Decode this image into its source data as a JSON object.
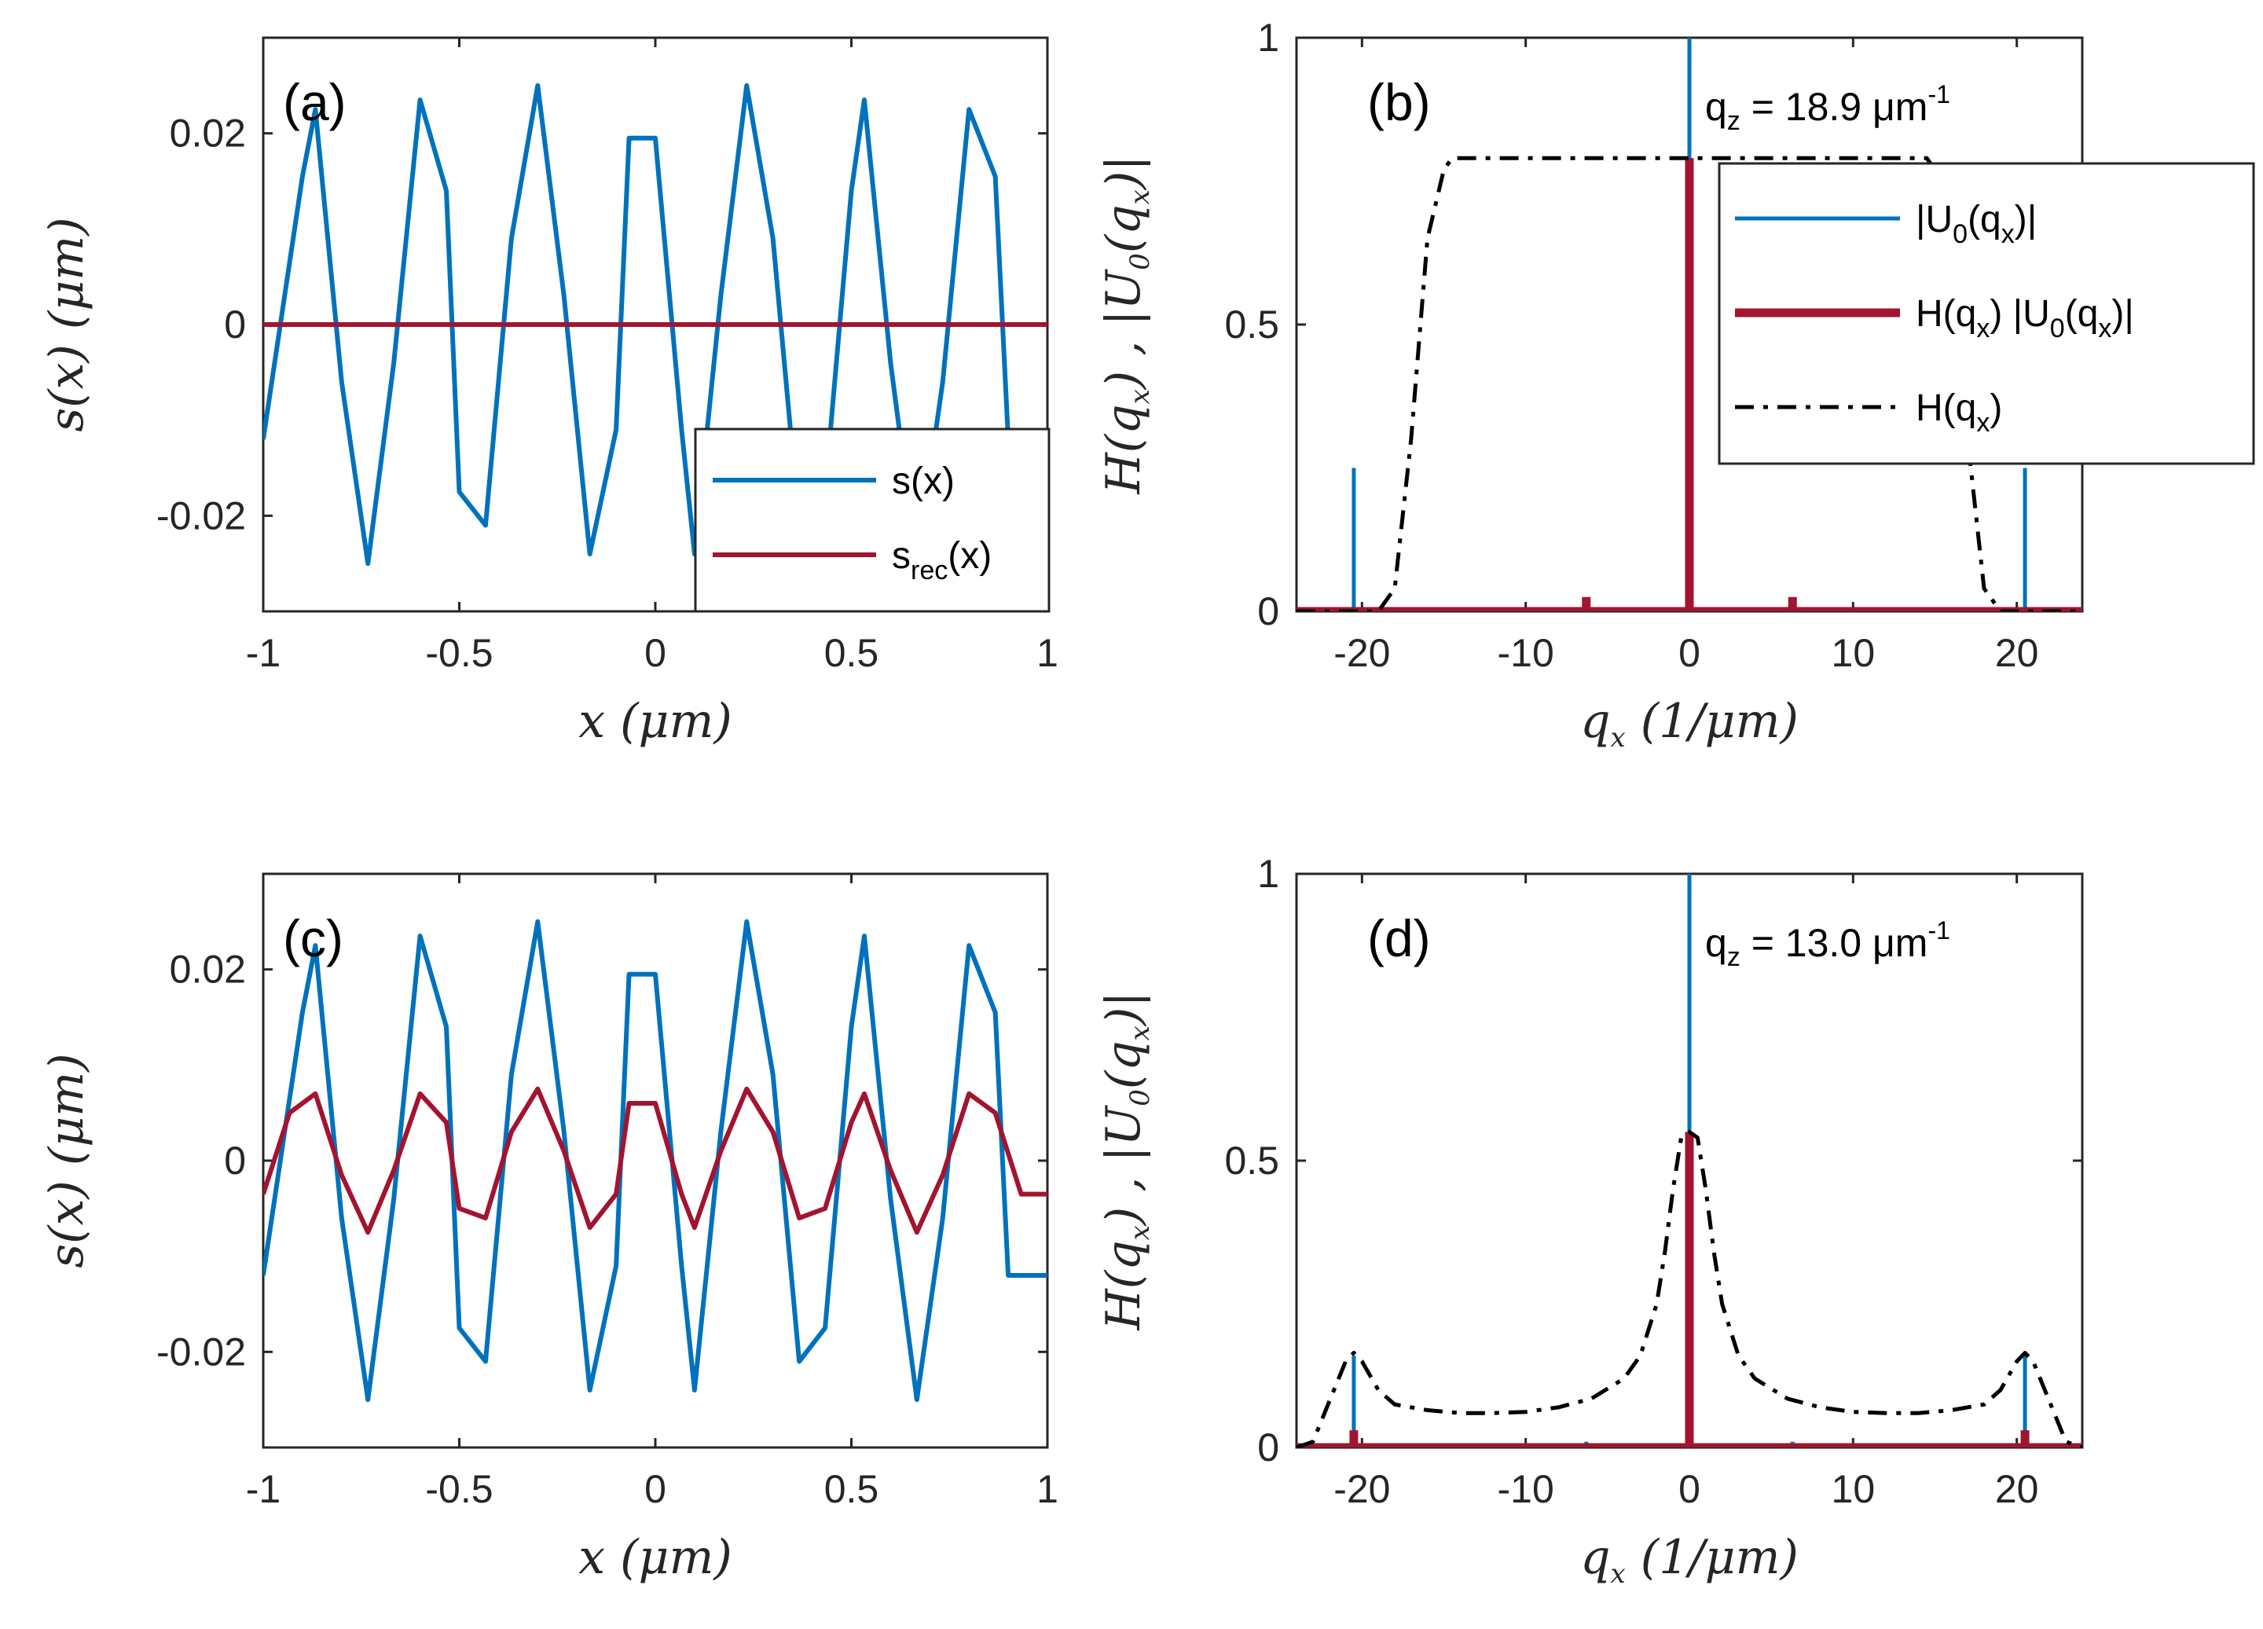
{
  "chart_data": [
    {
      "type": "line",
      "panel_label": "(a)",
      "xlabel": "x (μm)",
      "ylabel": "s(x) (μm)",
      "xlim": [
        -1,
        1
      ],
      "ylim": [
        -0.03,
        0.03
      ],
      "xticks": [
        "-1",
        "-0.5",
        "0",
        "0.5",
        "1"
      ],
      "yticks": [
        "-0.02",
        "0",
        "0.02"
      ],
      "legend": {
        "position": "bottom-right",
        "entries": [
          {
            "label": "s(x)",
            "sub": "",
            "tail": "",
            "color": "#0072BD"
          },
          {
            "label": "s",
            "sub": "rec",
            "tail": "(x)",
            "color": "#A2142F"
          }
        ]
      },
      "series": [
        {
          "name": "s(x)",
          "color": "#0072BD",
          "x": [
            -1,
            -0.9,
            -0.867,
            -0.8,
            -0.733,
            -0.667,
            -0.6,
            -0.533,
            -0.5,
            -0.433,
            -0.367,
            -0.3,
            -0.233,
            -0.167,
            -0.1,
            -0.067,
            0,
            0.067,
            0.1,
            0.167,
            0.233,
            0.3,
            0.367,
            0.433,
            0.5,
            0.533,
            0.6,
            0.667,
            0.733,
            0.8,
            0.867,
            0.9,
            1
          ],
          "y": [
            -0.012,
            0.0155,
            0.0225,
            -0.006,
            -0.025,
            -0.004,
            0.0235,
            0.014,
            -0.0175,
            -0.021,
            0.009,
            0.025,
            0.003,
            -0.024,
            -0.011,
            0.0195,
            0.0195,
            -0.011,
            -0.024,
            0.003,
            0.025,
            0.009,
            -0.021,
            -0.0175,
            0.014,
            0.0235,
            -0.004,
            -0.025,
            -0.006,
            0.0225,
            0.0155,
            -0.012,
            -0.012
          ]
        },
        {
          "name": "s_rec(x)",
          "color": "#A2142F",
          "x": [
            -1,
            1
          ],
          "y": [
            0,
            0
          ]
        }
      ]
    },
    {
      "type": "line",
      "panel_label": "(b)",
      "annotation": {
        "text": "q",
        "sub": "z",
        "mid": " = 18.9 μm",
        "sup": "-1"
      },
      "xlabel": "q_x (1/μm)",
      "ylabel": "H(q_x) , |U_0(q_x)|",
      "xlim": [
        -24,
        24
      ],
      "ylim": [
        0,
        1
      ],
      "xticks": [
        "-20",
        "-10",
        "0",
        "10",
        "20"
      ],
      "yticks": [
        "0",
        "0.5",
        "1"
      ],
      "legend": {
        "position": "top-right",
        "entries": [
          {
            "label": "|U_0(q_x)|",
            "color": "#0072BD"
          },
          {
            "label": "H(q_x) |U_0(q_x)|",
            "color": "#A2142F"
          },
          {
            "label": "H(q_x)",
            "color": "#000000"
          }
        ]
      },
      "series": [
        {
          "name": "|U_0(q_x)|",
          "color": "#0072BD",
          "kind": "stem",
          "x": [
            -20.5,
            -6.3,
            0,
            6.3,
            20.5
          ],
          "y": [
            0.25,
            0.02,
            1.0,
            0.02,
            0.25
          ]
        },
        {
          "name": "H(q_x) |U_0(q_x)|",
          "color": "#A2142F",
          "kind": "stem",
          "x": [
            -6.3,
            0,
            6.3
          ],
          "y": [
            0.025,
            0.79,
            0.025
          ]
        },
        {
          "name": "H(q_x)",
          "color": "#000000",
          "kind": "dashdot",
          "x": [
            -24,
            -19,
            -18,
            -17,
            -16,
            -15,
            -14.5,
            -14,
            0,
            14,
            14.5,
            15,
            16,
            17,
            18,
            19,
            24
          ],
          "y": [
            0,
            0,
            0.04,
            0.3,
            0.65,
            0.77,
            0.79,
            0.79,
            0.79,
            0.79,
            0.79,
            0.77,
            0.65,
            0.3,
            0.04,
            0,
            0
          ]
        }
      ]
    },
    {
      "type": "line",
      "panel_label": "(c)",
      "xlabel": "x (μm)",
      "ylabel": "s(x) (μm)",
      "xlim": [
        -1,
        1
      ],
      "ylim": [
        -0.03,
        0.03
      ],
      "xticks": [
        "-1",
        "-0.5",
        "0",
        "0.5",
        "1"
      ],
      "yticks": [
        "-0.02",
        "0",
        "0.02"
      ],
      "series": [
        {
          "name": "s(x)",
          "color": "#0072BD",
          "x": [
            -1,
            -0.9,
            -0.867,
            -0.8,
            -0.733,
            -0.667,
            -0.6,
            -0.533,
            -0.5,
            -0.433,
            -0.367,
            -0.3,
            -0.233,
            -0.167,
            -0.1,
            -0.067,
            0,
            0.067,
            0.1,
            0.167,
            0.233,
            0.3,
            0.367,
            0.433,
            0.5,
            0.533,
            0.6,
            0.667,
            0.733,
            0.8,
            0.867,
            0.9,
            1
          ],
          "y": [
            -0.012,
            0.0155,
            0.0225,
            -0.006,
            -0.025,
            -0.004,
            0.0235,
            0.014,
            -0.0175,
            -0.021,
            0.009,
            0.025,
            0.003,
            -0.024,
            -0.011,
            0.0195,
            0.0195,
            -0.011,
            -0.024,
            0.003,
            0.025,
            0.009,
            -0.021,
            -0.0175,
            0.014,
            0.0235,
            -0.004,
            -0.025,
            -0.006,
            0.0225,
            0.0155,
            -0.012,
            -0.012
          ]
        },
        {
          "name": "s_rec(x)",
          "color": "#A2142F",
          "x": [
            -1,
            -0.933,
            -0.867,
            -0.8,
            -0.733,
            -0.667,
            -0.6,
            -0.533,
            -0.5,
            -0.433,
            -0.367,
            -0.3,
            -0.233,
            -0.167,
            -0.1,
            -0.067,
            0,
            0.067,
            0.1,
            0.167,
            0.233,
            0.3,
            0.367,
            0.433,
            0.5,
            0.533,
            0.6,
            0.667,
            0.733,
            0.8,
            0.867,
            0.933,
            1
          ],
          "y": [
            -0.0035,
            0.005,
            0.007,
            -0.0015,
            -0.0075,
            -0.001,
            0.007,
            0.004,
            -0.005,
            -0.006,
            0.003,
            0.0075,
            0.001,
            -0.007,
            -0.0035,
            0.006,
            0.006,
            -0.0035,
            -0.007,
            0.001,
            0.0075,
            0.003,
            -0.006,
            -0.005,
            0.004,
            0.007,
            -0.001,
            -0.0075,
            -0.0015,
            0.007,
            0.005,
            -0.0035,
            -0.0035
          ]
        }
      ]
    },
    {
      "type": "line",
      "panel_label": "(d)",
      "annotation": {
        "text": "q",
        "sub": "z",
        "mid": " = 13.0 μm",
        "sup": "-1"
      },
      "xlabel": "q_x (1/μm)",
      "ylabel": "H(q_x) , |U_0(q_x)|",
      "xlim": [
        -24,
        24
      ],
      "ylim": [
        0,
        1
      ],
      "xticks": [
        "-20",
        "-10",
        "0",
        "10",
        "20"
      ],
      "yticks": [
        "0",
        "0.5",
        "1"
      ],
      "series": [
        {
          "name": "|U_0(q_x)|",
          "color": "#0072BD",
          "kind": "stem",
          "x": [
            -20.5,
            -6.3,
            0,
            6.3,
            20.5
          ],
          "y": [
            0.16,
            0.01,
            1.0,
            0.01,
            0.16
          ]
        },
        {
          "name": "H(q_x) |U_0(q_x)|",
          "color": "#A2142F",
          "kind": "stem",
          "x": [
            -20.5,
            0,
            20.5
          ],
          "y": [
            0.03,
            0.55,
            0.03
          ]
        },
        {
          "name": "H(q_x)",
          "color": "#000000",
          "kind": "dashdot",
          "x": [
            -24,
            -23,
            -22,
            -21,
            -20.5,
            -20,
            -19,
            -18,
            -16,
            -14,
            -12,
            -10,
            -8,
            -6,
            -4,
            -3,
            -2,
            -1.5,
            -1,
            -0.5,
            0,
            0.5,
            1,
            1.5,
            2,
            3,
            4,
            6,
            8,
            10,
            12,
            14,
            16,
            18,
            19,
            20,
            20.5,
            21,
            22,
            23,
            24
          ],
          "y": [
            0,
            0.01,
            0.08,
            0.15,
            0.165,
            0.15,
            0.1,
            0.075,
            0.065,
            0.06,
            0.06,
            0.062,
            0.07,
            0.085,
            0.12,
            0.16,
            0.25,
            0.34,
            0.45,
            0.54,
            0.55,
            0.54,
            0.45,
            0.34,
            0.25,
            0.16,
            0.12,
            0.085,
            0.07,
            0.062,
            0.06,
            0.06,
            0.065,
            0.075,
            0.1,
            0.15,
            0.165,
            0.15,
            0.08,
            0.01,
            0
          ]
        }
      ]
    }
  ]
}
